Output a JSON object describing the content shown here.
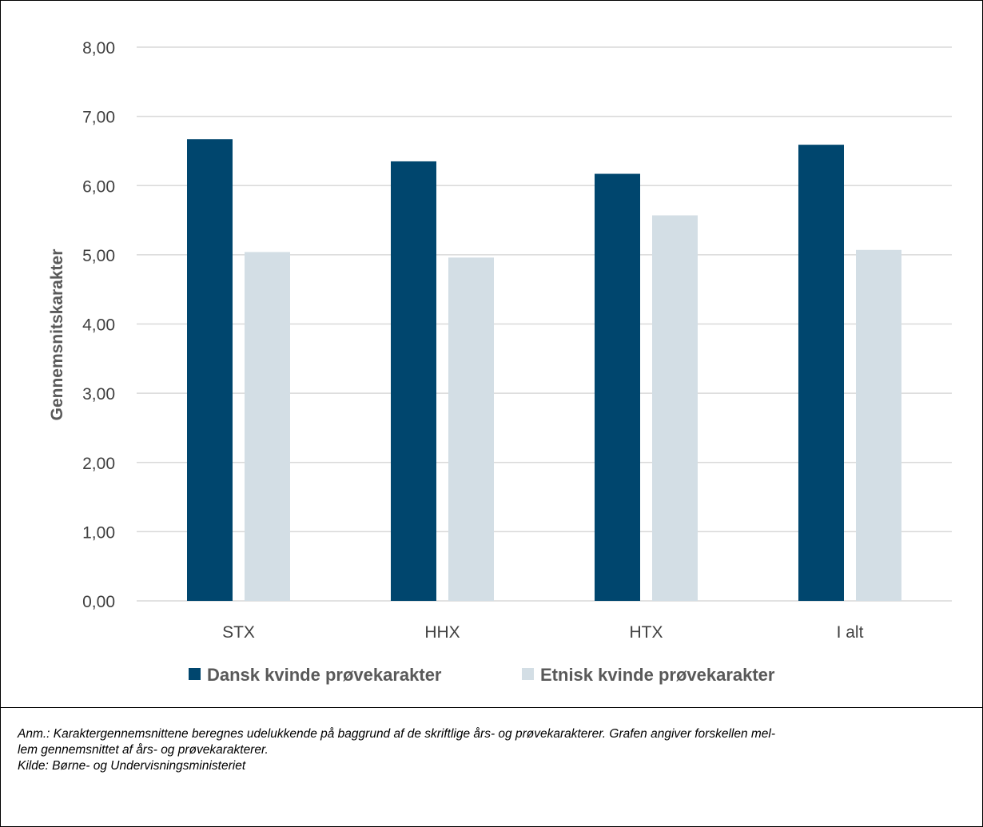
{
  "chart_data": {
    "type": "bar",
    "categories": [
      "STX",
      "HHX",
      "HTX",
      "I alt"
    ],
    "series": [
      {
        "name": "Dansk kvinde prøvekarakter",
        "color": "#00466E",
        "values": [
          6.67,
          6.35,
          6.17,
          6.59
        ]
      },
      {
        "name": "Etnisk kvinde prøvekarakter",
        "color": "#D3DEE5",
        "values": [
          5.04,
          4.96,
          5.57,
          5.07
        ]
      }
    ],
    "ylabel": "Gennemsnitskarakter",
    "ylim": [
      0,
      8
    ],
    "yticks": [
      "0,00",
      "1,00",
      "2,00",
      "3,00",
      "4,00",
      "5,00",
      "6,00",
      "7,00",
      "8,00"
    ],
    "grid": true,
    "legend": "bottom"
  },
  "note": {
    "line1": "Anm.: Karaktergennemsnittene beregnes udelukkende på baggrund af de skriftlige års- og prøvekarakterer. Grafen angiver forskellen mel-",
    "line2": "lem gennemsnittet af års- og prøvekarakterer.",
    "line3": "Kilde: Børne- og Undervisningsministeriet"
  }
}
